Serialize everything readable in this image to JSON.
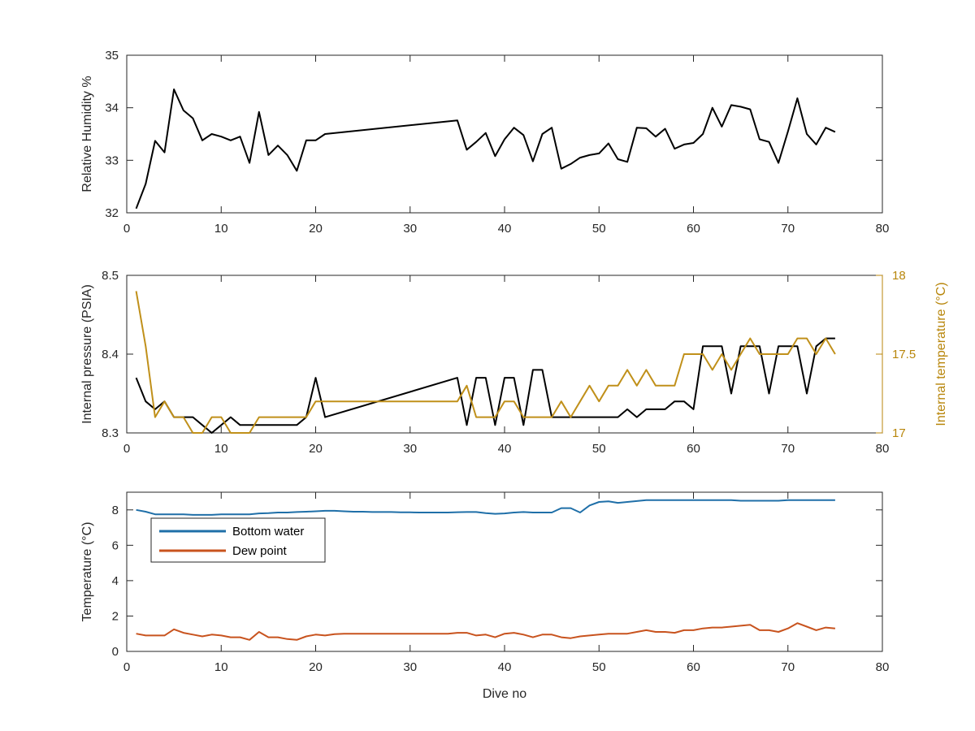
{
  "chart_data": [
    {
      "type": "line",
      "ylabel": "Relative Humidity %",
      "xlabel": "",
      "xlim": [
        0,
        80
      ],
      "ylim": [
        32,
        35
      ],
      "xticks": [
        "0",
        "10",
        "20",
        "30",
        "40",
        "50",
        "60",
        "70",
        "80"
      ],
      "yticks": [
        "32",
        "33",
        "34",
        "35"
      ],
      "series": [
        {
          "color": "#000000",
          "x": [
            1,
            2,
            3,
            4,
            5,
            6,
            7,
            8,
            9,
            10,
            11,
            12,
            13,
            14,
            15,
            16,
            17,
            18,
            19,
            20,
            21,
            35,
            36,
            37,
            38,
            39,
            40,
            41,
            42,
            43,
            44,
            45,
            46,
            47,
            48,
            49,
            50,
            51,
            52,
            53,
            54,
            55,
            56,
            57,
            58,
            59,
            60,
            61,
            62,
            63,
            64,
            65,
            66,
            67,
            68,
            69,
            70,
            71,
            72,
            73,
            74,
            75
          ],
          "values": [
            32.08,
            32.55,
            33.37,
            33.15,
            34.35,
            33.95,
            33.8,
            33.38,
            33.5,
            33.45,
            33.38,
            33.45,
            32.95,
            33.92,
            33.1,
            33.28,
            33.1,
            32.8,
            33.38,
            33.38,
            33.5,
            33.76,
            33.2,
            33.35,
            33.52,
            33.08,
            33.4,
            33.62,
            33.48,
            32.98,
            33.5,
            33.62,
            32.84,
            32.93,
            33.05,
            33.1,
            33.13,
            33.32,
            33.02,
            32.97,
            33.62,
            33.61,
            33.45,
            33.6,
            33.22,
            33.3,
            33.33,
            33.5,
            34.0,
            33.64,
            34.05,
            34.02,
            33.97,
            33.4,
            33.35,
            32.95,
            33.55,
            34.18,
            33.5,
            33.3,
            33.62,
            33.54
          ]
        }
      ]
    },
    {
      "type": "line",
      "ylabel": "Internal pressure (PSIA)",
      "ylabel_right": "Internal temperature (°C)",
      "xlim": [
        0,
        80
      ],
      "ylim": [
        8.3,
        8.5
      ],
      "ylim_right": [
        17,
        18
      ],
      "xticks": [
        "0",
        "10",
        "20",
        "30",
        "40",
        "50",
        "60",
        "70",
        "80"
      ],
      "yticks": [
        "8.3",
        "8.4",
        "8.5"
      ],
      "yticks_right": [
        "17",
        "17.5",
        "18"
      ],
      "series": [
        {
          "axis": "left",
          "color": "#000000",
          "x": [
            1,
            2,
            3,
            4,
            5,
            6,
            7,
            8,
            9,
            10,
            11,
            12,
            13,
            14,
            15,
            16,
            17,
            18,
            19,
            20,
            21,
            35,
            36,
            37,
            38,
            39,
            40,
            41,
            42,
            43,
            44,
            45,
            46,
            47,
            48,
            49,
            50,
            51,
            52,
            53,
            54,
            55,
            56,
            57,
            58,
            59,
            60,
            61,
            62,
            63,
            64,
            65,
            66,
            67,
            68,
            69,
            70,
            71,
            72,
            73,
            74,
            75
          ],
          "values": [
            8.37,
            8.34,
            8.33,
            8.34,
            8.32,
            8.32,
            8.32,
            8.31,
            8.3,
            8.31,
            8.32,
            8.31,
            8.31,
            8.31,
            8.31,
            8.31,
            8.31,
            8.31,
            8.32,
            8.37,
            8.32,
            8.37,
            8.31,
            8.37,
            8.37,
            8.31,
            8.37,
            8.37,
            8.31,
            8.38,
            8.38,
            8.32,
            8.32,
            8.32,
            8.32,
            8.32,
            8.32,
            8.32,
            8.32,
            8.33,
            8.32,
            8.33,
            8.33,
            8.33,
            8.34,
            8.34,
            8.33,
            8.41,
            8.41,
            8.41,
            8.35,
            8.41,
            8.41,
            8.41,
            8.35,
            8.41,
            8.41,
            8.41,
            8.35,
            8.41,
            8.42,
            8.42
          ]
        },
        {
          "axis": "right",
          "color": "#C0901A",
          "x": [
            1,
            2,
            3,
            4,
            5,
            6,
            7,
            8,
            9,
            10,
            11,
            12,
            13,
            14,
            15,
            16,
            17,
            18,
            19,
            20,
            35,
            36,
            37,
            38,
            39,
            40,
            41,
            42,
            43,
            44,
            45,
            46,
            47,
            48,
            49,
            50,
            51,
            52,
            53,
            54,
            55,
            56,
            57,
            58,
            59,
            60,
            61,
            62,
            63,
            64,
            65,
            66,
            67,
            68,
            69,
            70,
            71,
            72,
            73,
            74,
            75
          ],
          "values": [
            17.9,
            17.55,
            17.1,
            17.2,
            17.1,
            17.1,
            17.0,
            17.0,
            17.1,
            17.1,
            17.0,
            17.0,
            17.0,
            17.1,
            17.1,
            17.1,
            17.1,
            17.1,
            17.1,
            17.2,
            17.2,
            17.3,
            17.1,
            17.1,
            17.1,
            17.2,
            17.2,
            17.1,
            17.1,
            17.1,
            17.1,
            17.2,
            17.1,
            17.2,
            17.3,
            17.2,
            17.3,
            17.3,
            17.4,
            17.3,
            17.4,
            17.3,
            17.3,
            17.3,
            17.5,
            17.5,
            17.5,
            17.4,
            17.5,
            17.4,
            17.5,
            17.6,
            17.5,
            17.5,
            17.5,
            17.5,
            17.6,
            17.6,
            17.5,
            17.6,
            17.5
          ]
        }
      ]
    },
    {
      "type": "line",
      "ylabel": "Temperature (°C)",
      "xlabel": "Dive no",
      "xlim": [
        0,
        80
      ],
      "ylim": [
        0,
        9
      ],
      "xticks": [
        "0",
        "10",
        "20",
        "30",
        "40",
        "50",
        "60",
        "70",
        "80"
      ],
      "yticks": [
        "0",
        "2",
        "4",
        "6",
        "8"
      ],
      "legend": "top-left",
      "series": [
        {
          "name": "Bottom water",
          "color": "#1F6FA8",
          "x": [
            1,
            2,
            3,
            4,
            5,
            6,
            7,
            8,
            9,
            10,
            11,
            12,
            13,
            14,
            15,
            16,
            17,
            18,
            19,
            20,
            21,
            22,
            23,
            24,
            25,
            26,
            27,
            28,
            29,
            30,
            31,
            32,
            33,
            34,
            35,
            36,
            37,
            38,
            39,
            40,
            41,
            42,
            43,
            44,
            45,
            46,
            47,
            48,
            49,
            50,
            51,
            52,
            53,
            54,
            55,
            56,
            57,
            58,
            59,
            60,
            61,
            62,
            63,
            64,
            65,
            66,
            67,
            68,
            69,
            70,
            71,
            72,
            73,
            74,
            75
          ],
          "values": [
            8.0,
            7.9,
            7.75,
            7.75,
            7.75,
            7.75,
            7.72,
            7.72,
            7.72,
            7.75,
            7.75,
            7.75,
            7.75,
            7.8,
            7.82,
            7.85,
            7.85,
            7.88,
            7.9,
            7.92,
            7.95,
            7.95,
            7.92,
            7.9,
            7.9,
            7.88,
            7.88,
            7.88,
            7.86,
            7.86,
            7.85,
            7.85,
            7.85,
            7.85,
            7.87,
            7.88,
            7.88,
            7.82,
            7.78,
            7.8,
            7.85,
            7.88,
            7.85,
            7.85,
            7.85,
            8.1,
            8.1,
            7.85,
            8.25,
            8.45,
            8.48,
            8.4,
            8.45,
            8.5,
            8.55,
            8.55,
            8.55,
            8.55,
            8.55,
            8.55,
            8.55,
            8.55,
            8.55,
            8.55,
            8.52,
            8.52,
            8.52,
            8.52,
            8.52,
            8.55,
            8.55,
            8.55,
            8.55,
            8.55,
            8.55
          ]
        },
        {
          "name": "Dew point",
          "color": "#C8531E",
          "x": [
            1,
            2,
            3,
            4,
            5,
            6,
            7,
            8,
            9,
            10,
            11,
            12,
            13,
            14,
            15,
            16,
            17,
            18,
            19,
            20,
            21,
            22,
            23,
            24,
            25,
            26,
            27,
            28,
            29,
            30,
            31,
            32,
            33,
            34,
            35,
            36,
            37,
            38,
            39,
            40,
            41,
            42,
            43,
            44,
            45,
            46,
            47,
            48,
            49,
            50,
            51,
            52,
            53,
            54,
            55,
            56,
            57,
            58,
            59,
            60,
            61,
            62,
            63,
            64,
            65,
            66,
            67,
            68,
            69,
            70,
            71,
            72,
            73,
            74,
            75
          ],
          "values": [
            1.0,
            0.9,
            0.9,
            0.9,
            1.25,
            1.05,
            0.95,
            0.85,
            0.95,
            0.9,
            0.8,
            0.8,
            0.65,
            1.1,
            0.8,
            0.8,
            0.7,
            0.65,
            0.85,
            0.95,
            0.9,
            0.98,
            1.0,
            1.0,
            1.0,
            1.0,
            1.0,
            1.0,
            1.0,
            1.0,
            1.0,
            1.0,
            1.0,
            1.0,
            1.05,
            1.05,
            0.9,
            0.95,
            0.8,
            1.0,
            1.05,
            0.95,
            0.8,
            0.95,
            0.95,
            0.8,
            0.75,
            0.85,
            0.9,
            0.95,
            1.0,
            1.0,
            1.0,
            1.1,
            1.2,
            1.1,
            1.1,
            1.05,
            1.2,
            1.2,
            1.3,
            1.35,
            1.35,
            1.4,
            1.45,
            1.5,
            1.2,
            1.2,
            1.1,
            1.3,
            1.6,
            1.4,
            1.2,
            1.35,
            1.3
          ]
        }
      ]
    }
  ]
}
